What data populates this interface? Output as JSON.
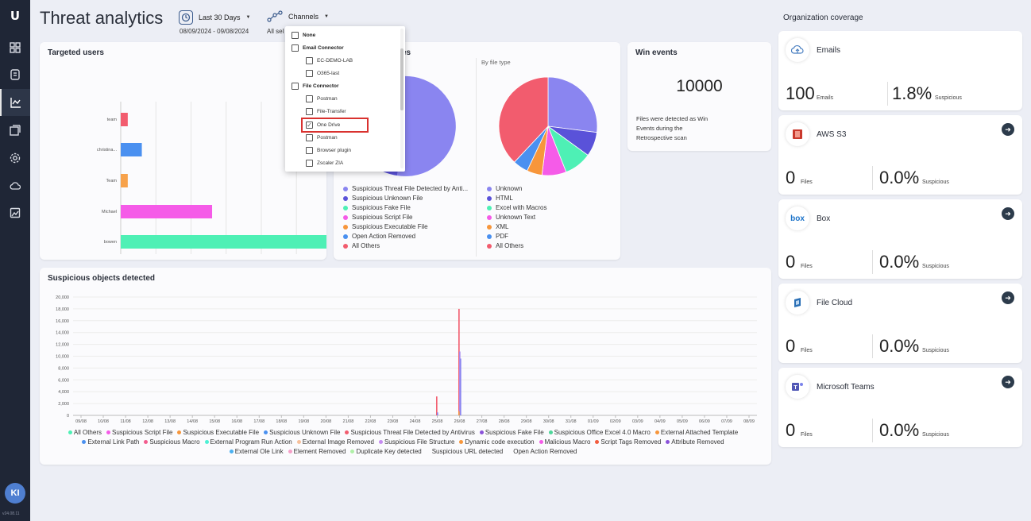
{
  "sidebar": {
    "logo": "U",
    "items": [
      {
        "name": "dashboard-icon"
      },
      {
        "name": "document-icon"
      },
      {
        "name": "analytics-icon",
        "active": true
      },
      {
        "name": "reports-icon"
      },
      {
        "name": "settings-icon"
      },
      {
        "name": "cloud-icon"
      },
      {
        "name": "image-icon"
      }
    ],
    "avatar": "KI",
    "version": "v24.08.11"
  },
  "header": {
    "title": "Threat analytics",
    "date_filter": {
      "label": "Last 30 Days",
      "range": "08/09/2024 - 09/08/2024"
    },
    "channels_filter": {
      "label": "Channels",
      "sub": "All sel"
    }
  },
  "channels_dropdown": {
    "items": [
      {
        "label": "None",
        "group": true,
        "checked": false
      },
      {
        "label": "Email Connector",
        "group": true,
        "checked": false
      },
      {
        "label": "EC-DEMO-LAB",
        "group": false,
        "checked": false
      },
      {
        "label": "O365-last",
        "group": false,
        "checked": false
      },
      {
        "label": "File Connector",
        "group": true,
        "checked": false
      },
      {
        "label": "Postman",
        "group": false,
        "checked": false
      },
      {
        "label": "File-Transfer",
        "group": false,
        "checked": false
      },
      {
        "label": "One Drive",
        "group": false,
        "checked": true
      },
      {
        "label": "Postman",
        "group": false,
        "checked": false
      },
      {
        "label": "Browser plugin",
        "group": false,
        "checked": false
      },
      {
        "label": "Zscaler ZIA",
        "group": false,
        "checked": false
      }
    ]
  },
  "targeted_users": {
    "title": "Targeted users",
    "chart_data": {
      "type": "bar",
      "orientation": "horizontal",
      "categories": [
        "team",
        "christina...",
        "Team",
        "Michael",
        "bowen"
      ],
      "values": [
        1,
        3,
        1,
        13,
        33
      ],
      "colors": [
        "#f25c6e",
        "#4a90f0",
        "#f7a24b",
        "#f55be8",
        "#4ef0b5"
      ],
      "xlim": [
        0,
        33
      ],
      "xticks": [
        0,
        10,
        20,
        30
      ],
      "grid": true
    }
  },
  "file_types": {
    "title_partial": "es",
    "right_subtitle": "By file type",
    "left_legend": [
      {
        "label": "Suspicious Threat File Detected by Anti...",
        "color": "#8a85f0"
      },
      {
        "label": "Suspicious Unknown File",
        "color": "#5a52d9"
      },
      {
        "label": "Suspicious Fake File",
        "color": "#4ef0b5"
      },
      {
        "label": "Suspicious Script File",
        "color": "#f55be8"
      },
      {
        "label": "Suspicious Executable File",
        "color": "#f7963b"
      },
      {
        "label": "Open Action Removed",
        "color": "#4a90f0"
      },
      {
        "label": "All Others",
        "color": "#f25c6e"
      }
    ],
    "right_legend": [
      {
        "label": "Unknown",
        "color": "#8a85f0"
      },
      {
        "label": "HTML",
        "color": "#5a52d9"
      },
      {
        "label": "Excel with Macros",
        "color": "#4ef0b5"
      },
      {
        "label": "Unknown Text",
        "color": "#f55be8"
      },
      {
        "label": "XML",
        "color": "#f7963b"
      },
      {
        "label": "PDF",
        "color": "#4a90f0"
      },
      {
        "label": "All Others",
        "color": "#f25c6e"
      }
    ],
    "chart_data": {
      "type": "pie",
      "slices": [
        {
          "label": "Unknown",
          "value": 27,
          "color": "#8a85f0"
        },
        {
          "label": "HTML",
          "value": 8,
          "color": "#5a52d9"
        },
        {
          "label": "Excel with Macros",
          "value": 9,
          "color": "#4ef0b5"
        },
        {
          "label": "Unknown Text",
          "value": 8,
          "color": "#f55be8"
        },
        {
          "label": "XML",
          "value": 5,
          "color": "#f7963b"
        },
        {
          "label": "PDF",
          "value": 5,
          "color": "#4a90f0"
        },
        {
          "label": "All Others",
          "value": 38,
          "color": "#f25c6e"
        }
      ]
    }
  },
  "win_events": {
    "title": "Win events",
    "value": "10000",
    "description": "Files were detected as Win Events during the Retrospective scan"
  },
  "suspicious_objects": {
    "title": "Suspicious objects detected",
    "chart_data": {
      "type": "bar",
      "x": [
        "09/08",
        "10/08",
        "11/08",
        "12/08",
        "13/08",
        "14/08",
        "15/08",
        "16/08",
        "17/08",
        "18/08",
        "19/08",
        "20/08",
        "21/08",
        "22/08",
        "23/08",
        "24/08",
        "25/08",
        "26/08",
        "27/08",
        "28/08",
        "29/08",
        "30/08",
        "31/08",
        "01/09",
        "02/09",
        "03/09",
        "04/09",
        "05/09",
        "06/09",
        "07/09",
        "08/09"
      ],
      "ylim": [
        0,
        20000
      ],
      "yticks": [
        "0",
        "2,000",
        "4,000",
        "6,000",
        "8,000",
        "10,000",
        "12,000",
        "14,000",
        "16,000",
        "18,000",
        "20,000"
      ],
      "spikes": [
        {
          "x": "25/08",
          "value": 3200,
          "color": "#f25c6e"
        },
        {
          "x": "25/08",
          "value": 500,
          "color": "#8a85f0"
        },
        {
          "x": "26/08",
          "value": 18000,
          "color": "#f25c6e"
        },
        {
          "x": "26/08",
          "value": 10800,
          "color": "#a78bf0"
        },
        {
          "x": "26/08",
          "value": 9600,
          "color": "#8a85f0"
        },
        {
          "x": "26/08",
          "value": 700,
          "color": "#f7963b"
        }
      ],
      "legend": [
        {
          "label": "All Others",
          "color": "#4ef0b5"
        },
        {
          "label": "Suspicious Script File",
          "color": "#f55be8"
        },
        {
          "label": "Suspicious Executable File",
          "color": "#f7963b"
        },
        {
          "label": "Suspicious Unknown File",
          "color": "#4a90f0"
        },
        {
          "label": "Suspicious Threat File Detected by Antivirus",
          "color": "#f25c6e"
        },
        {
          "label": "Suspicious Fake File",
          "color": "#8a52d9"
        },
        {
          "label": "Suspicious Office Excel 4.0 Macro",
          "color": "#4ed69a"
        },
        {
          "label": "External Attached Template",
          "color": "#f7963b"
        },
        {
          "label": "External Link Path",
          "color": "#4a90f0"
        },
        {
          "label": "Suspicious Macro",
          "color": "#f25c8e"
        },
        {
          "label": "External Program Run Action",
          "color": "#4ef0d5"
        },
        {
          "label": "External Image Removed",
          "color": "#f7c09b"
        },
        {
          "label": "Suspicious File Structure",
          "color": "#c58bf0"
        },
        {
          "label": "Dynamic code execution",
          "color": "#f7963b"
        },
        {
          "label": "Malicious Macro",
          "color": "#f55be8"
        },
        {
          "label": "Script Tags Removed",
          "color": "#f25c3e"
        },
        {
          "label": "Attribute Removed",
          "color": "#8a52d9"
        },
        {
          "label": "External Ole Link",
          "color": "#4ab0f0"
        },
        {
          "label": "Element Removed",
          "color": "#f5a0c8"
        },
        {
          "label": "Duplicate Key detected",
          "color": "#b0f0a8"
        },
        {
          "label": "Suspicious URL detected",
          "color": ""
        },
        {
          "label": "Open Action Removed",
          "color": ""
        }
      ]
    }
  },
  "coverage": {
    "title": "Organization coverage",
    "items": [
      {
        "name": "Emails",
        "count": "100",
        "unit": "Emails",
        "pct": "1.8%",
        "pct_label": "Suspicious",
        "arrow": false,
        "icon": "cloud-upload-icon"
      },
      {
        "name": "AWS S3",
        "count": "0",
        "unit": "Files",
        "pct": "0.0%",
        "pct_label": "Suspicious",
        "arrow": true,
        "icon": "aws-s3-icon"
      },
      {
        "name": "Box",
        "count": "0",
        "unit": "Files",
        "pct": "0.0%",
        "pct_label": "Suspicious",
        "arrow": true,
        "icon": "box-logo-icon"
      },
      {
        "name": "File Cloud",
        "count": "0",
        "unit": "Files",
        "pct": "0.0%",
        "pct_label": "Suspicious",
        "arrow": true,
        "icon": "file-cloud-icon"
      },
      {
        "name": "Microsoft Teams",
        "count": "0",
        "unit": "Files",
        "pct": "0.0%",
        "pct_label": "Suspicious",
        "arrow": true,
        "icon": "teams-icon"
      }
    ]
  }
}
